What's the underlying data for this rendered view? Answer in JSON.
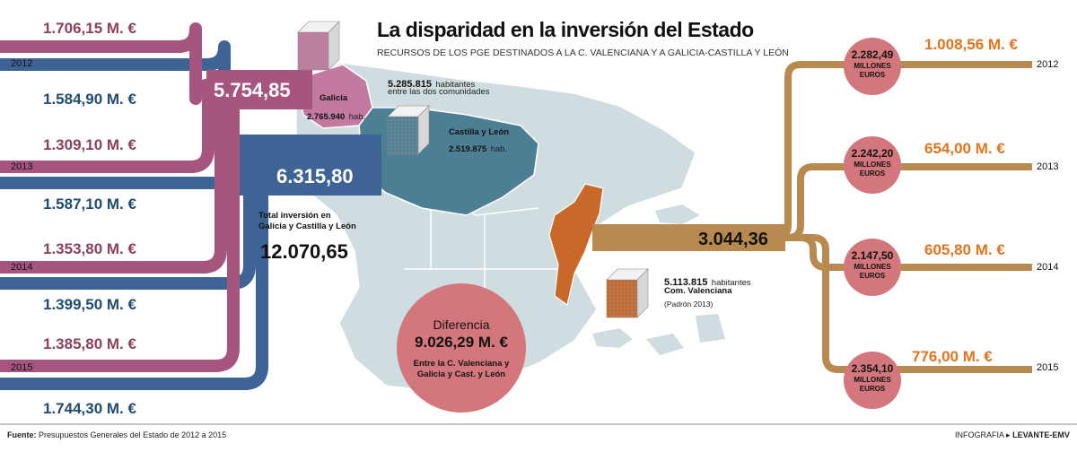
{
  "title": "La disparidad en la inversión del Estado",
  "subtitle": "RECURSOS DE LOS PGE DESTINADOS A LA C. VALENCIANA Y A GALICIA-CASTILLA Y LEÓN",
  "years": [
    "2012",
    "2013",
    "2014",
    "2015"
  ],
  "galicia_values": [
    "1.706,15 M. €",
    "1.309,10 M. €",
    "1.353,80 M. €",
    "1.385,80 M. €"
  ],
  "cyl_values": [
    "1.584,90 M. €",
    "1.587,10 M. €",
    "1.399,50 M. €",
    "1.744,30 M. €"
  ],
  "galicia_total": "5.754,85",
  "cyl_total": "6.315,80",
  "galicia_label": "Galicia",
  "galicia_pop": "2.765.940",
  "hab_abbr": "hab.",
  "cyl_label": "Castilla y León",
  "cyl_pop": "2.519.875",
  "both_pop": "5.285.815",
  "both_pop_suffix": "habitantes",
  "both_pop_sub": "entre las dos comunidades",
  "total_label": "Total inversión en Galicia y Castilla y León",
  "total_value": "12.070,65",
  "diff_label": "Diferencia",
  "diff_value": "9.026,29 M. €",
  "diff_sub": "Entre la C. Valenciana y Galicia y Cast. y León",
  "valencia_total": "3.044,36",
  "valencia_pop": "5.113.815",
  "valencia_pop_suffix": "habitantes",
  "valencia_label": "Com. Valenciana",
  "valencia_note": "(Padrón 2013)",
  "valencia_values": [
    "1.008,56 M. €",
    "654,00 M. €",
    "605,80 M. €",
    "776,00 M. €"
  ],
  "avg_values": [
    "2.282,49",
    "2.242,20",
    "2.147,50",
    "2.354,10"
  ],
  "millones": "MILLONES",
  "euros": "EUROS",
  "footer_label": "Fuente:",
  "footer_text": "Presupuestos Generales del Estado de 2012 a 2015",
  "credit_label": "INFOGRAFIA",
  "credit_name": "LEVANTE-EMV",
  "colors": {
    "galicia": "#a6567e",
    "cyl": "#3d6494",
    "valencia": "#b98a4f",
    "circle": "#d4777d",
    "map": "#cfdde0",
    "valencia_map": "#c8692a",
    "galicia_map": "#c27aa0",
    "cyl_map": "#4d7f94"
  }
}
